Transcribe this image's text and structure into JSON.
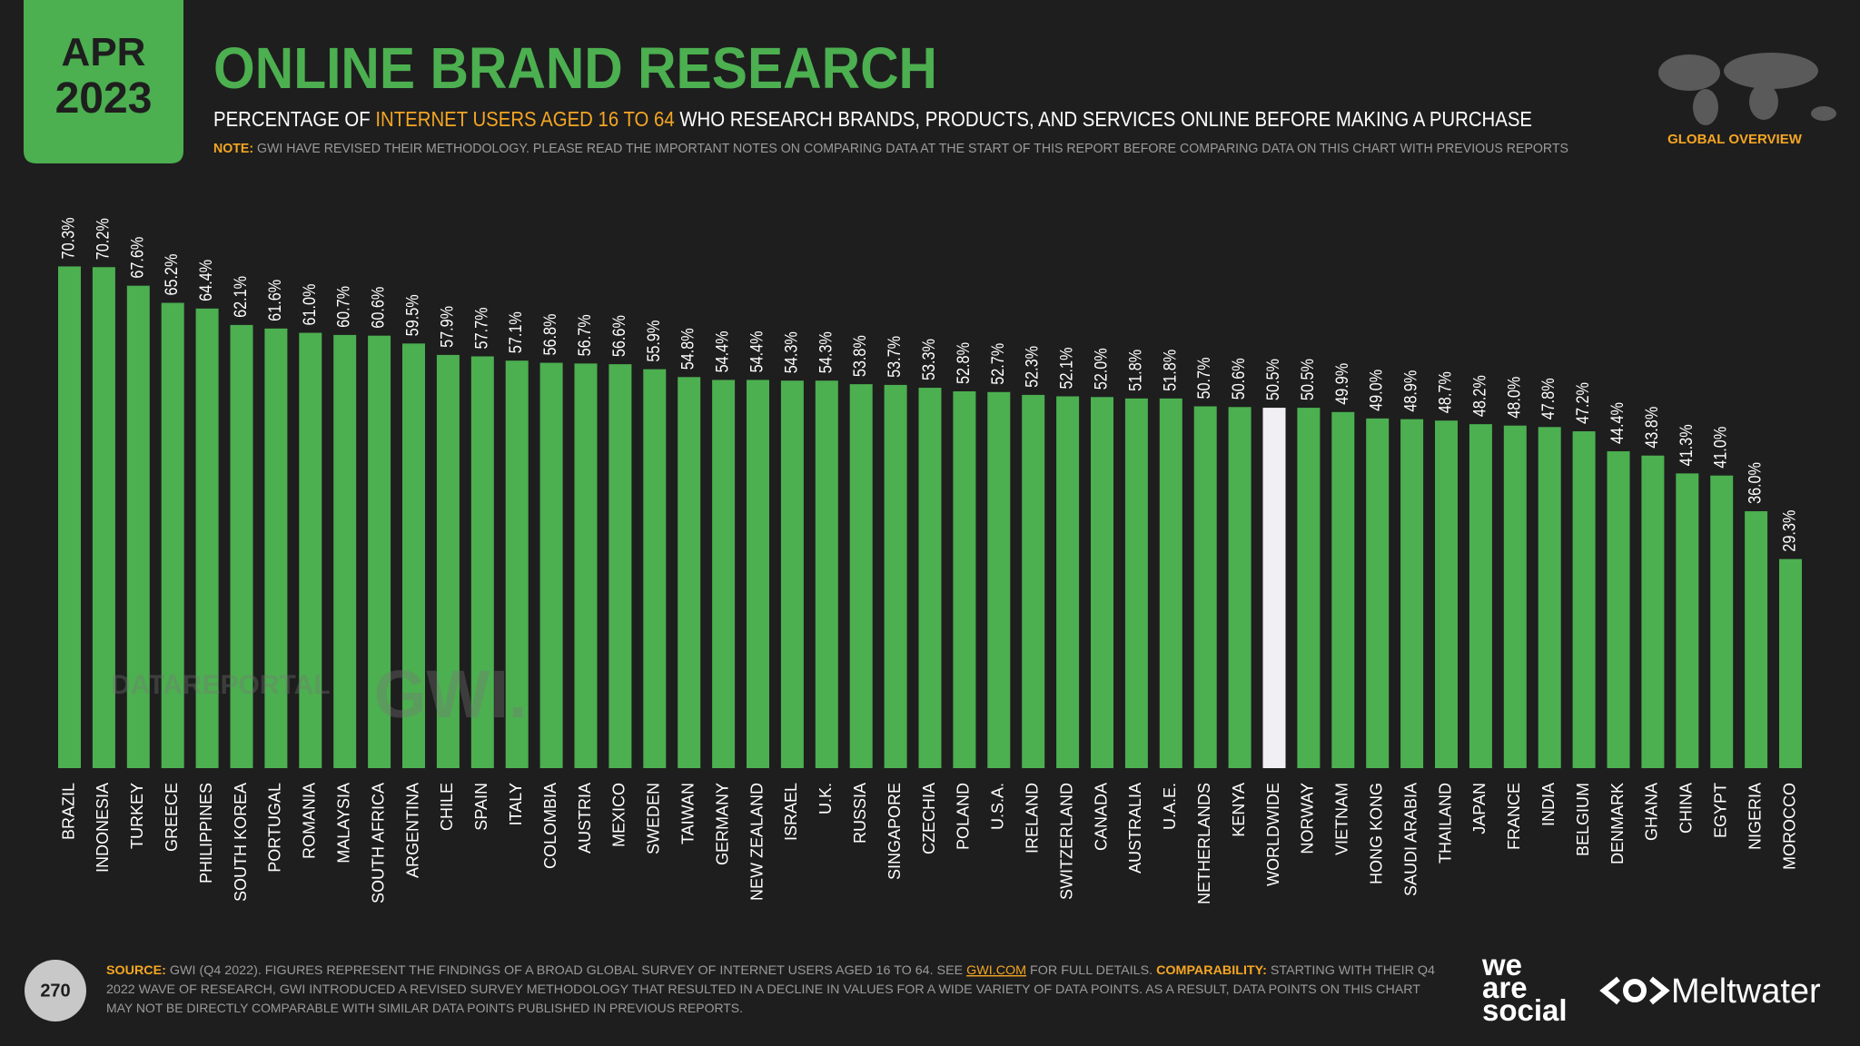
{
  "header": {
    "badge_month": "APR",
    "badge_year": "2023",
    "title": "ONLINE BRAND RESEARCH",
    "subtitle": [
      "PERCENTAGE OF ",
      "INTERNET USERS AGED 16 TO 64",
      " WHO RESEARCH BRANDS, PRODUCTS, AND SERVICES ONLINE BEFORE MAKING A PURCHASE"
    ],
    "note": [
      "NOTE:",
      " GWI HAVE REVISED THEIR METHODOLOGY. PLEASE READ THE IMPORTANT NOTES ON COMPARING DATA AT THE START OF THIS REPORT BEFORE COMPARING DATA ON THIS CHART WITH PREVIOUS REPORTS"
    ],
    "section": "GLOBAL OVERVIEW"
  },
  "chart_data": {
    "type": "bar",
    "categories": [
      "BRAZIL",
      "INDONESIA",
      "TURKEY",
      "GREECE",
      "PHILIPPINES",
      "SOUTH KOREA",
      "PORTUGAL",
      "ROMANIA",
      "MALAYSIA",
      "SOUTH AFRICA",
      "ARGENTINA",
      "CHILE",
      "SPAIN",
      "ITALY",
      "COLOMBIA",
      "AUSTRIA",
      "MEXICO",
      "SWEDEN",
      "TAIWAN",
      "GERMANY",
      "NEW ZEALAND",
      "ISRAEL",
      "U.K.",
      "RUSSIA",
      "SINGAPORE",
      "CZECHIA",
      "POLAND",
      "U.S.A.",
      "IRELAND",
      "SWITZERLAND",
      "CANADA",
      "AUSTRALIA",
      "U.A.E.",
      "NETHERLANDS",
      "KENYA",
      "WORLDWIDE",
      "NORWAY",
      "VIETNAM",
      "HONG KONG",
      "SAUDI ARABIA",
      "THAILAND",
      "JAPAN",
      "FRANCE",
      "INDIA",
      "BELGIUM",
      "DENMARK",
      "GHANA",
      "CHINA",
      "EGYPT",
      "NIGERIA",
      "MOROCCO"
    ],
    "values": [
      70.3,
      70.2,
      67.6,
      65.2,
      64.4,
      62.1,
      61.6,
      61.0,
      60.7,
      60.6,
      59.5,
      57.9,
      57.7,
      57.1,
      56.8,
      56.7,
      56.6,
      55.9,
      54.8,
      54.4,
      54.4,
      54.3,
      54.3,
      53.8,
      53.7,
      53.3,
      52.8,
      52.7,
      52.3,
      52.1,
      52.0,
      51.8,
      51.8,
      50.7,
      50.6,
      50.5,
      50.5,
      49.9,
      49.0,
      48.9,
      48.7,
      48.2,
      48.0,
      47.8,
      47.2,
      44.4,
      43.8,
      41.3,
      41.0,
      36.0,
      29.3
    ],
    "value_labels": [
      "70.3%",
      "70.2%",
      "67.6%",
      "65.2%",
      "64.4%",
      "62.1%",
      "61.6%",
      "61.0%",
      "60.7%",
      "60.6%",
      "59.5%",
      "57.9%",
      "57.7%",
      "57.1%",
      "56.8%",
      "56.7%",
      "56.6%",
      "55.9%",
      "54.8%",
      "54.4%",
      "54.4%",
      "54.3%",
      "54.3%",
      "53.8%",
      "53.7%",
      "53.3%",
      "52.8%",
      "52.7%",
      "52.3%",
      "52.1%",
      "52.0%",
      "51.8%",
      "51.8%",
      "50.7%",
      "50.6%",
      "50.5%",
      "50.5%",
      "49.9%",
      "49.0%",
      "48.9%",
      "48.7%",
      "48.2%",
      "48.0%",
      "47.8%",
      "47.2%",
      "44.4%",
      "43.8%",
      "41.3%",
      "41.0%",
      "36.0%",
      "29.3%"
    ],
    "colors": [
      "#4caf50",
      "#4caf50",
      "#4caf50",
      "#4caf50",
      "#4caf50",
      "#4caf50",
      "#4caf50",
      "#4caf50",
      "#4caf50",
      "#4caf50",
      "#4caf50",
      "#4caf50",
      "#4caf50",
      "#4caf50",
      "#4caf50",
      "#4caf50",
      "#4caf50",
      "#4caf50",
      "#4caf50",
      "#4caf50",
      "#4caf50",
      "#4caf50",
      "#4caf50",
      "#4caf50",
      "#4caf50",
      "#4caf50",
      "#4caf50",
      "#4caf50",
      "#4caf50",
      "#4caf50",
      "#4caf50",
      "#4caf50",
      "#4caf50",
      "#4caf50",
      "#4caf50",
      "#f1eff3",
      "#4caf50",
      "#4caf50",
      "#4caf50",
      "#4caf50",
      "#4caf50",
      "#4caf50",
      "#4caf50",
      "#4caf50",
      "#4caf50",
      "#4caf50",
      "#4caf50",
      "#4caf50",
      "#4caf50",
      "#4caf50",
      "#4caf50"
    ],
    "ylim": [
      0,
      100
    ]
  },
  "watermarks": [
    "DATAREPORTAL",
    "GWI."
  ],
  "footer": {
    "page": "270",
    "source_lines": [
      [
        "SOURCE:",
        " GWI (Q4 2022). FIGURES REPRESENT THE FINDINGS OF A BROAD GLOBAL SURVEY OF INTERNET USERS AGED 16 TO 64. SEE ",
        "GWI.COM",
        " FOR FULL DETAILS. ",
        "COMPARABILITY:",
        " STARTING WITH THEIR Q4"
      ],
      [
        "2022 WAVE OF RESEARCH, GWI INTRODUCED A REVISED SURVEY METHODOLOGY THAT RESULTED IN A DECLINE IN VALUES FOR A WIDE VARIETY OF DATA POINTS. AS A RESULT, DATA POINTS ON THIS CHART"
      ],
      [
        "MAY NOT BE DIRECTLY COMPARABLE WITH SIMILAR DATA POINTS PUBLISHED IN PREVIOUS REPORTS."
      ]
    ],
    "logo_1": [
      "we",
      "are",
      "social"
    ],
    "logo_2": "Meltwater"
  }
}
